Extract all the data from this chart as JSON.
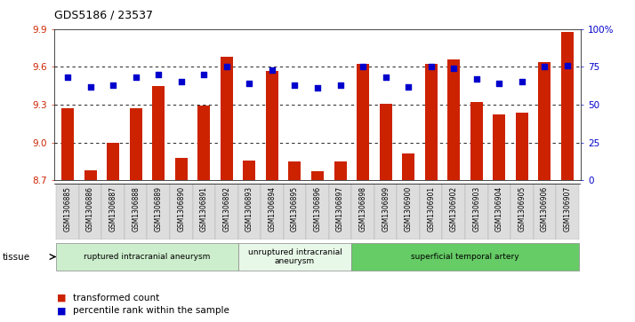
{
  "title": "GDS5186 / 23537",
  "samples": [
    "GSM1306885",
    "GSM1306886",
    "GSM1306887",
    "GSM1306888",
    "GSM1306889",
    "GSM1306890",
    "GSM1306891",
    "GSM1306892",
    "GSM1306893",
    "GSM1306894",
    "GSM1306895",
    "GSM1306896",
    "GSM1306897",
    "GSM1306898",
    "GSM1306899",
    "GSM1306900",
    "GSM1306901",
    "GSM1306902",
    "GSM1306903",
    "GSM1306904",
    "GSM1306905",
    "GSM1306906",
    "GSM1306907"
  ],
  "bar_values": [
    9.27,
    8.78,
    9.0,
    9.27,
    9.45,
    8.88,
    9.29,
    9.68,
    8.86,
    9.57,
    8.85,
    8.77,
    8.85,
    9.62,
    9.31,
    8.91,
    9.62,
    9.66,
    9.32,
    9.22,
    9.24,
    9.64,
    9.88
  ],
  "dot_values": [
    68,
    62,
    63,
    68,
    70,
    65,
    70,
    75,
    64,
    73,
    63,
    61,
    63,
    75,
    68,
    62,
    75,
    74,
    67,
    64,
    65,
    75,
    76
  ],
  "ylim_left": [
    8.7,
    9.9
  ],
  "ylim_right": [
    0,
    100
  ],
  "yticks_left": [
    8.7,
    9.0,
    9.3,
    9.6,
    9.9
  ],
  "yticks_right": [
    0,
    25,
    50,
    75,
    100
  ],
  "ytick_labels_right": [
    "0",
    "25",
    "50",
    "75",
    "100%"
  ],
  "bar_color": "#cc2200",
  "dot_color": "#0000cc",
  "groups": [
    {
      "label": "ruptured intracranial aneurysm",
      "start": 0,
      "end": 8,
      "color": "#cceecc"
    },
    {
      "label": "unruptured intracranial\naneurysm",
      "start": 8,
      "end": 13,
      "color": "#e8f8e8"
    },
    {
      "label": "superficial temporal artery",
      "start": 13,
      "end": 23,
      "color": "#66cc66"
    }
  ],
  "tick_bg_light": "#dddddd",
  "tick_bg_dark": "#bbbbbb",
  "tissue_label": "tissue",
  "legend_items": [
    {
      "label": "transformed count",
      "color": "#cc2200"
    },
    {
      "label": "percentile rank within the sample",
      "color": "#0000cc"
    }
  ],
  "background_color": "#ffffff",
  "gridline_color": "#000000",
  "gridline_y": [
    9.0,
    9.3,
    9.6
  ]
}
